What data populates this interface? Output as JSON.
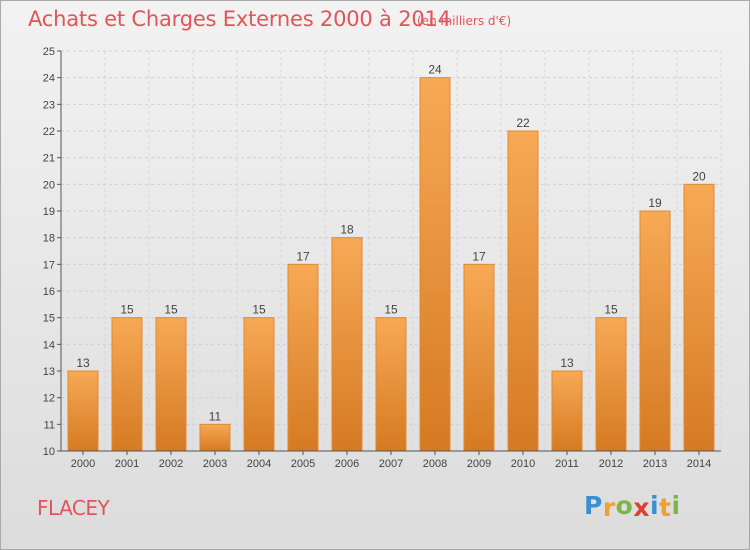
{
  "title": "Achats et Charges Externes 2000 à 2014",
  "unit": "(en milliers d'€)",
  "place": "FLACEY",
  "logo": {
    "text": "Proxiti",
    "letters": [
      {
        "ch": "P",
        "color": "#3a8fd0"
      },
      {
        "ch": "r",
        "color": "#f0a030"
      },
      {
        "ch": "o",
        "color": "#7ab648"
      },
      {
        "ch": "x",
        "color": "#e0402f"
      },
      {
        "ch": "i",
        "color": "#3a8fd0"
      },
      {
        "ch": "t",
        "color": "#f0a030"
      },
      {
        "ch": "i",
        "color": "#7ab648"
      }
    ]
  },
  "colors": {
    "bar_top": "#f7a955",
    "bar_bottom": "#d57a22",
    "bar_stroke": "#e08a30",
    "text_accent": "#e0555a"
  },
  "chart_data": {
    "type": "bar",
    "title": "Achats et Charges Externes 2000 à 2014",
    "subtitle": "(en milliers d'€)",
    "categories": [
      "2000",
      "2001",
      "2002",
      "2003",
      "2004",
      "2005",
      "2006",
      "2007",
      "2008",
      "2009",
      "2010",
      "2011",
      "2012",
      "2013",
      "2014"
    ],
    "values": [
      13,
      15,
      15,
      11,
      15,
      17,
      18,
      15,
      24,
      17,
      22,
      13,
      15,
      19,
      20
    ],
    "ylim": [
      10,
      25
    ],
    "yticks": [
      10,
      11,
      12,
      13,
      14,
      15,
      16,
      17,
      18,
      19,
      20,
      21,
      22,
      23,
      24,
      25
    ],
    "grid": true,
    "data_labels": true,
    "xlabel": "",
    "ylabel": ""
  }
}
